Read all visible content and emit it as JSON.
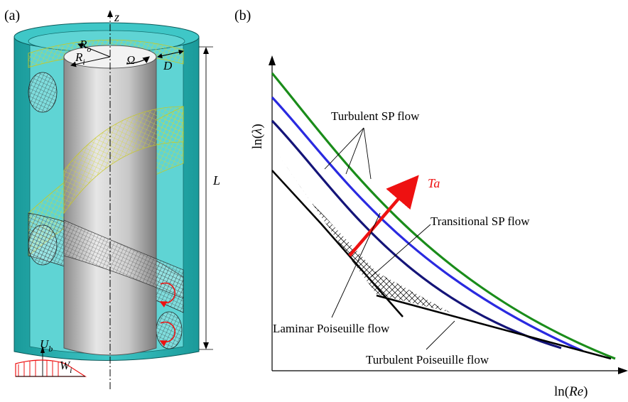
{
  "panel_a": {
    "label": "(a)",
    "z_label": "z",
    "Ro_label": "R",
    "Ro_sub": "o",
    "Ri_label": "R",
    "Ri_sub": "i",
    "Omega_label": "Ω",
    "D_label": "D",
    "L_label": "L",
    "Ub_label": "U",
    "Ub_sub": "b",
    "Wi_label": "W",
    "Wi_sub": "i",
    "colors": {
      "outer_cylinder": "#2fb3b3",
      "inner_cylinder": "#c9c9c9",
      "helix_outer": "#e8e84a",
      "helix_inner": "#222222",
      "profile": "#ff2020"
    }
  },
  "panel_b": {
    "label": "(b)",
    "ylabel_prefix": "ln(",
    "ylabel_var": "λ",
    "ylabel_suffix": ")",
    "xlabel_prefix": "ln(",
    "xlabel_var": "Re",
    "xlabel_suffix": ")",
    "annotations": {
      "turbulent_sp": "Turbulent SP flow",
      "ta": "Ta",
      "transitional_sp": "Transitional SP flow",
      "laminar": "Laminar Poiseuille flow",
      "turbulent_p": "Turbulent Poiseuille flow"
    },
    "colors": {
      "green": "#1a8c1a",
      "blue": "#2a2ae0",
      "navy": "#141478",
      "arrow": "#ee1111",
      "black": "#000000"
    }
  }
}
